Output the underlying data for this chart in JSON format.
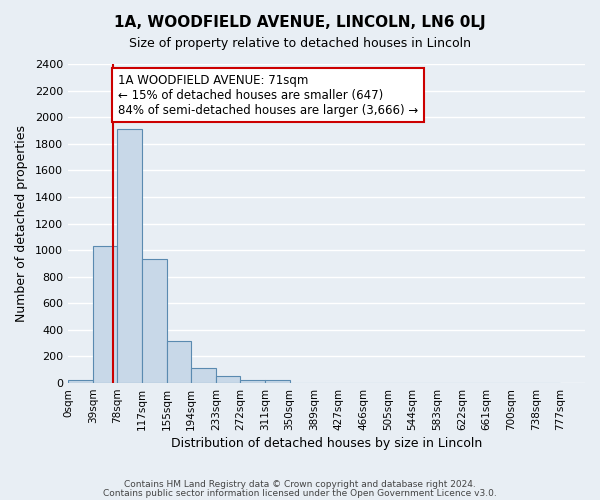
{
  "title": "1A, WOODFIELD AVENUE, LINCOLN, LN6 0LJ",
  "subtitle": "Size of property relative to detached houses in Lincoln",
  "xlabel": "Distribution of detached houses by size in Lincoln",
  "ylabel": "Number of detached properties",
  "footer_lines": [
    "Contains HM Land Registry data © Crown copyright and database right 2024.",
    "Contains public sector information licensed under the Open Government Licence v3.0."
  ],
  "bin_labels": [
    "0sqm",
    "39sqm",
    "78sqm",
    "117sqm",
    "155sqm",
    "194sqm",
    "233sqm",
    "272sqm",
    "311sqm",
    "350sqm",
    "389sqm",
    "427sqm",
    "466sqm",
    "505sqm",
    "544sqm",
    "583sqm",
    "622sqm",
    "661sqm",
    "700sqm",
    "738sqm",
    "777sqm"
  ],
  "bin_values": [
    20,
    1030,
    1910,
    930,
    320,
    110,
    50,
    25,
    20,
    0,
    0,
    0,
    0,
    0,
    0,
    0,
    0,
    0,
    0,
    0
  ],
  "bar_color": "#c8d8e8",
  "bar_edge_color": "#5a8ab0",
  "background_color": "#e8eef4",
  "grid_color": "#ffffff",
  "ylim": [
    0,
    2400
  ],
  "yticks": [
    0,
    200,
    400,
    600,
    800,
    1000,
    1200,
    1400,
    1600,
    1800,
    2000,
    2200,
    2400
  ],
  "property_line_x": 71,
  "property_line_color": "#cc0000",
  "annotation_text": "1A WOODFIELD AVENUE: 71sqm\n← 15% of detached houses are smaller (647)\n84% of semi-detached houses are larger (3,666) →",
  "annotation_box_color": "#ffffff",
  "annotation_box_edge": "#cc0000",
  "bin_width": 39,
  "num_bins": 20
}
